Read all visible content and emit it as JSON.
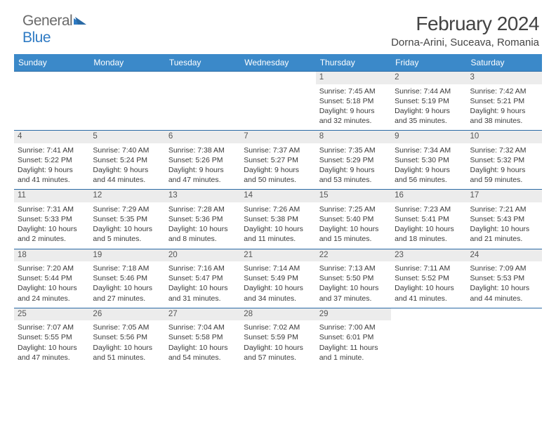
{
  "logo": {
    "word1": "General",
    "word2": "Blue"
  },
  "title": "February 2024",
  "location": "Dorna-Arini, Suceava, Romania",
  "colors": {
    "headerBg": "#3b89c9",
    "rowBorder": "#2a6aa5",
    "dayBg": "#ececec",
    "logoGray": "#6a6a6a",
    "logoBlue": "#2f7bc4"
  },
  "weekdays": [
    "Sunday",
    "Monday",
    "Tuesday",
    "Wednesday",
    "Thursday",
    "Friday",
    "Saturday"
  ],
  "grid": [
    [
      null,
      null,
      null,
      null,
      {
        "n": "1",
        "sr": "7:45 AM",
        "ss": "5:18 PM",
        "dl": "9 hours and 32 minutes."
      },
      {
        "n": "2",
        "sr": "7:44 AM",
        "ss": "5:19 PM",
        "dl": "9 hours and 35 minutes."
      },
      {
        "n": "3",
        "sr": "7:42 AM",
        "ss": "5:21 PM",
        "dl": "9 hours and 38 minutes."
      }
    ],
    [
      {
        "n": "4",
        "sr": "7:41 AM",
        "ss": "5:22 PM",
        "dl": "9 hours and 41 minutes."
      },
      {
        "n": "5",
        "sr": "7:40 AM",
        "ss": "5:24 PM",
        "dl": "9 hours and 44 minutes."
      },
      {
        "n": "6",
        "sr": "7:38 AM",
        "ss": "5:26 PM",
        "dl": "9 hours and 47 minutes."
      },
      {
        "n": "7",
        "sr": "7:37 AM",
        "ss": "5:27 PM",
        "dl": "9 hours and 50 minutes."
      },
      {
        "n": "8",
        "sr": "7:35 AM",
        "ss": "5:29 PM",
        "dl": "9 hours and 53 minutes."
      },
      {
        "n": "9",
        "sr": "7:34 AM",
        "ss": "5:30 PM",
        "dl": "9 hours and 56 minutes."
      },
      {
        "n": "10",
        "sr": "7:32 AM",
        "ss": "5:32 PM",
        "dl": "9 hours and 59 minutes."
      }
    ],
    [
      {
        "n": "11",
        "sr": "7:31 AM",
        "ss": "5:33 PM",
        "dl": "10 hours and 2 minutes."
      },
      {
        "n": "12",
        "sr": "7:29 AM",
        "ss": "5:35 PM",
        "dl": "10 hours and 5 minutes."
      },
      {
        "n": "13",
        "sr": "7:28 AM",
        "ss": "5:36 PM",
        "dl": "10 hours and 8 minutes."
      },
      {
        "n": "14",
        "sr": "7:26 AM",
        "ss": "5:38 PM",
        "dl": "10 hours and 11 minutes."
      },
      {
        "n": "15",
        "sr": "7:25 AM",
        "ss": "5:40 PM",
        "dl": "10 hours and 15 minutes."
      },
      {
        "n": "16",
        "sr": "7:23 AM",
        "ss": "5:41 PM",
        "dl": "10 hours and 18 minutes."
      },
      {
        "n": "17",
        "sr": "7:21 AM",
        "ss": "5:43 PM",
        "dl": "10 hours and 21 minutes."
      }
    ],
    [
      {
        "n": "18",
        "sr": "7:20 AM",
        "ss": "5:44 PM",
        "dl": "10 hours and 24 minutes."
      },
      {
        "n": "19",
        "sr": "7:18 AM",
        "ss": "5:46 PM",
        "dl": "10 hours and 27 minutes."
      },
      {
        "n": "20",
        "sr": "7:16 AM",
        "ss": "5:47 PM",
        "dl": "10 hours and 31 minutes."
      },
      {
        "n": "21",
        "sr": "7:14 AM",
        "ss": "5:49 PM",
        "dl": "10 hours and 34 minutes."
      },
      {
        "n": "22",
        "sr": "7:13 AM",
        "ss": "5:50 PM",
        "dl": "10 hours and 37 minutes."
      },
      {
        "n": "23",
        "sr": "7:11 AM",
        "ss": "5:52 PM",
        "dl": "10 hours and 41 minutes."
      },
      {
        "n": "24",
        "sr": "7:09 AM",
        "ss": "5:53 PM",
        "dl": "10 hours and 44 minutes."
      }
    ],
    [
      {
        "n": "25",
        "sr": "7:07 AM",
        "ss": "5:55 PM",
        "dl": "10 hours and 47 minutes."
      },
      {
        "n": "26",
        "sr": "7:05 AM",
        "ss": "5:56 PM",
        "dl": "10 hours and 51 minutes."
      },
      {
        "n": "27",
        "sr": "7:04 AM",
        "ss": "5:58 PM",
        "dl": "10 hours and 54 minutes."
      },
      {
        "n": "28",
        "sr": "7:02 AM",
        "ss": "5:59 PM",
        "dl": "10 hours and 57 minutes."
      },
      {
        "n": "29",
        "sr": "7:00 AM",
        "ss": "6:01 PM",
        "dl": "11 hours and 1 minute."
      },
      null,
      null
    ]
  ],
  "labels": {
    "sunrise": "Sunrise: ",
    "sunset": "Sunset: ",
    "daylight": "Daylight: "
  }
}
